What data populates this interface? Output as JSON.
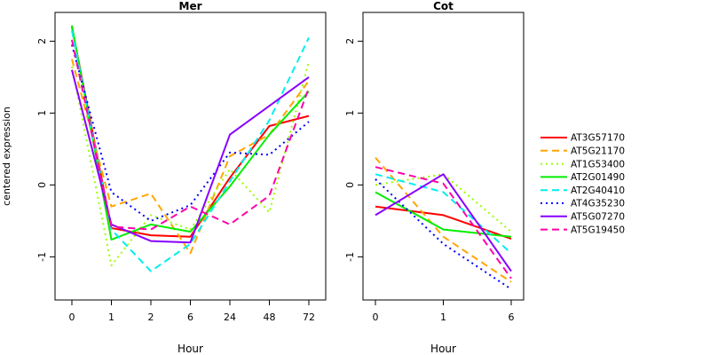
{
  "chart_data": [
    {
      "type": "line",
      "title": "Mer",
      "xlabel": "Hour",
      "ylabel": "centered expression",
      "categories": [
        "0",
        "1",
        "2",
        "6",
        "24",
        "48",
        "72"
      ],
      "ylim": [
        -1.6,
        2.4
      ],
      "yticks": [
        -1,
        0,
        1,
        2
      ],
      "grid": false,
      "series": [
        {
          "name": "AT3G57170",
          "color": "#ff0000",
          "dash": "solid",
          "values": [
            2.2,
            -0.6,
            -0.7,
            -0.72,
            0.1,
            0.82,
            0.96
          ]
        },
        {
          "name": "AT5G21170",
          "color": "#ffa500",
          "dash": "dashed",
          "values": [
            1.75,
            -0.3,
            -0.12,
            -0.95,
            0.4,
            0.7,
            1.45
          ]
        },
        {
          "name": "AT1G53400",
          "color": "#99ff00",
          "dash": "dotted",
          "values": [
            1.65,
            -1.12,
            -0.42,
            -0.62,
            0.22,
            -0.38,
            1.72
          ]
        },
        {
          "name": "AT2G01490",
          "color": "#00ee00",
          "dash": "solid",
          "values": [
            2.22,
            -0.76,
            -0.55,
            -0.65,
            -0.02,
            0.7,
            1.3
          ]
        },
        {
          "name": "AT2G40410",
          "color": "#00eeee",
          "dash": "dashed",
          "values": [
            2.15,
            -0.62,
            -1.2,
            -0.82,
            0.05,
            0.9,
            2.05
          ]
        },
        {
          "name": "AT4G35230",
          "color": "#0000ff",
          "dash": "dotted",
          "values": [
            1.95,
            -0.1,
            -0.5,
            -0.28,
            0.45,
            0.42,
            0.88
          ]
        },
        {
          "name": "AT5G07270",
          "color": "#8800ff",
          "dash": "solid",
          "values": [
            1.6,
            -0.55,
            -0.78,
            -0.8,
            0.7,
            1.1,
            1.5
          ]
        },
        {
          "name": "AT5G19450",
          "color": "#ff00aa",
          "dash": "dashed",
          "values": [
            2.02,
            -0.58,
            -0.62,
            -0.3,
            -0.55,
            -0.15,
            1.35
          ]
        }
      ]
    },
    {
      "type": "line",
      "title": "Cot",
      "xlabel": "Hour",
      "ylabel": "",
      "categories": [
        "0",
        "1",
        "6"
      ],
      "ylim": [
        -1.6,
        2.4
      ],
      "yticks": [
        -1,
        0,
        1,
        2
      ],
      "grid": false,
      "series": [
        {
          "name": "AT3G57170",
          "color": "#ff0000",
          "dash": "solid",
          "values": [
            -0.3,
            -0.42,
            -0.75
          ]
        },
        {
          "name": "AT5G21170",
          "color": "#ffa500",
          "dash": "dashed",
          "values": [
            0.38,
            -0.72,
            -1.35
          ]
        },
        {
          "name": "AT1G53400",
          "color": "#99ff00",
          "dash": "dotted",
          "values": [
            0.0,
            0.15,
            -0.65
          ]
        },
        {
          "name": "AT2G01490",
          "color": "#00ee00",
          "dash": "solid",
          "values": [
            -0.1,
            -0.62,
            -0.72
          ]
        },
        {
          "name": "AT2G40410",
          "color": "#00eeee",
          "dash": "dashed",
          "values": [
            0.15,
            -0.1,
            -0.95
          ]
        },
        {
          "name": "AT4G35230",
          "color": "#0000ff",
          "dash": "dotted",
          "values": [
            0.08,
            -0.82,
            -1.45
          ]
        },
        {
          "name": "AT5G07270",
          "color": "#8800ff",
          "dash": "solid",
          "values": [
            -0.42,
            0.15,
            -1.2
          ]
        },
        {
          "name": "AT5G19450",
          "color": "#ff00aa",
          "dash": "dashed",
          "values": [
            0.25,
            0.02,
            -1.3
          ]
        }
      ]
    }
  ],
  "legend": {
    "placement": "right",
    "entries": [
      "AT3G57170",
      "AT5G21170",
      "AT1G53400",
      "AT2G01490",
      "AT2G40410",
      "AT4G35230",
      "AT5G07270",
      "AT5G19450"
    ]
  }
}
